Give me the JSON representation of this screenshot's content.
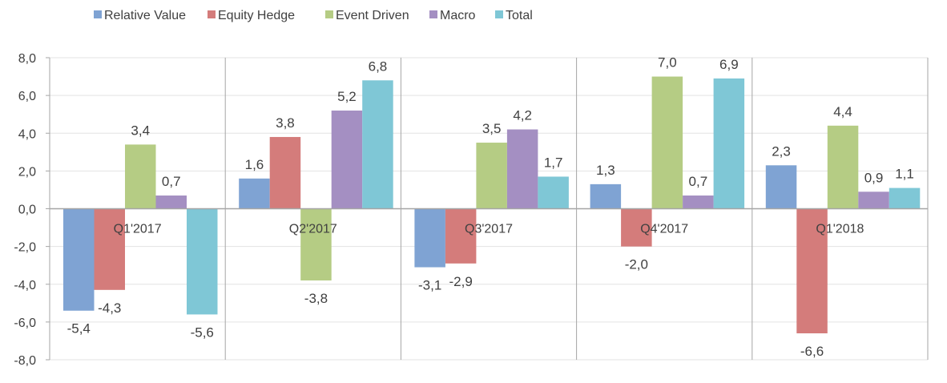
{
  "chart_data": {
    "type": "bar",
    "title": "",
    "xlabel": "",
    "ylabel": "",
    "ylim": [
      -8,
      8
    ],
    "yticks": [
      "8,0",
      "6,0",
      "4,0",
      "2,0",
      "0,0",
      "-2,0",
      "-4,0",
      "-6,0",
      "-8,0"
    ],
    "ytick_values": [
      8,
      6,
      4,
      2,
      0,
      -2,
      -4,
      -6,
      -8
    ],
    "categories": [
      "Q1'2017",
      "Q2'2017",
      "Q3'2017",
      "Q4'2017",
      "Q1'2018"
    ],
    "legend_position": "top-left",
    "grid": true,
    "series": [
      {
        "name": "Relative Value",
        "color": "#7fa3d3",
        "values": [
          -5.4,
          1.6,
          -3.1,
          1.3,
          2.3
        ],
        "labels": [
          "-5,4",
          "1,6",
          "-3,1",
          "1,3",
          "2,3"
        ]
      },
      {
        "name": "Equity Hedge",
        "color": "#d47c7b",
        "values": [
          -4.3,
          3.8,
          -2.9,
          -2.0,
          -6.6
        ],
        "labels": [
          "-4,3",
          "3,8",
          "-2,9",
          "-2,0",
          "-6,6"
        ]
      },
      {
        "name": "Event Driven",
        "color": "#b5cc84",
        "values": [
          3.4,
          -3.8,
          3.5,
          7.0,
          4.4
        ],
        "labels": [
          "3,4",
          "-3,8",
          "3,5",
          "7,0",
          "4,4"
        ]
      },
      {
        "name": "Macro",
        "color": "#a48fc2",
        "values": [
          0.7,
          5.2,
          4.2,
          0.7,
          0.9
        ],
        "labels": [
          "0,7",
          "5,2",
          "4,2",
          "0,7",
          "0,9"
        ]
      },
      {
        "name": "Total",
        "color": "#7fc7d6",
        "values": [
          -5.6,
          6.8,
          1.7,
          6.9,
          1.1
        ],
        "labels": [
          "-5,6",
          "6,8",
          "1,7",
          "6,9",
          "1,1"
        ]
      }
    ]
  }
}
